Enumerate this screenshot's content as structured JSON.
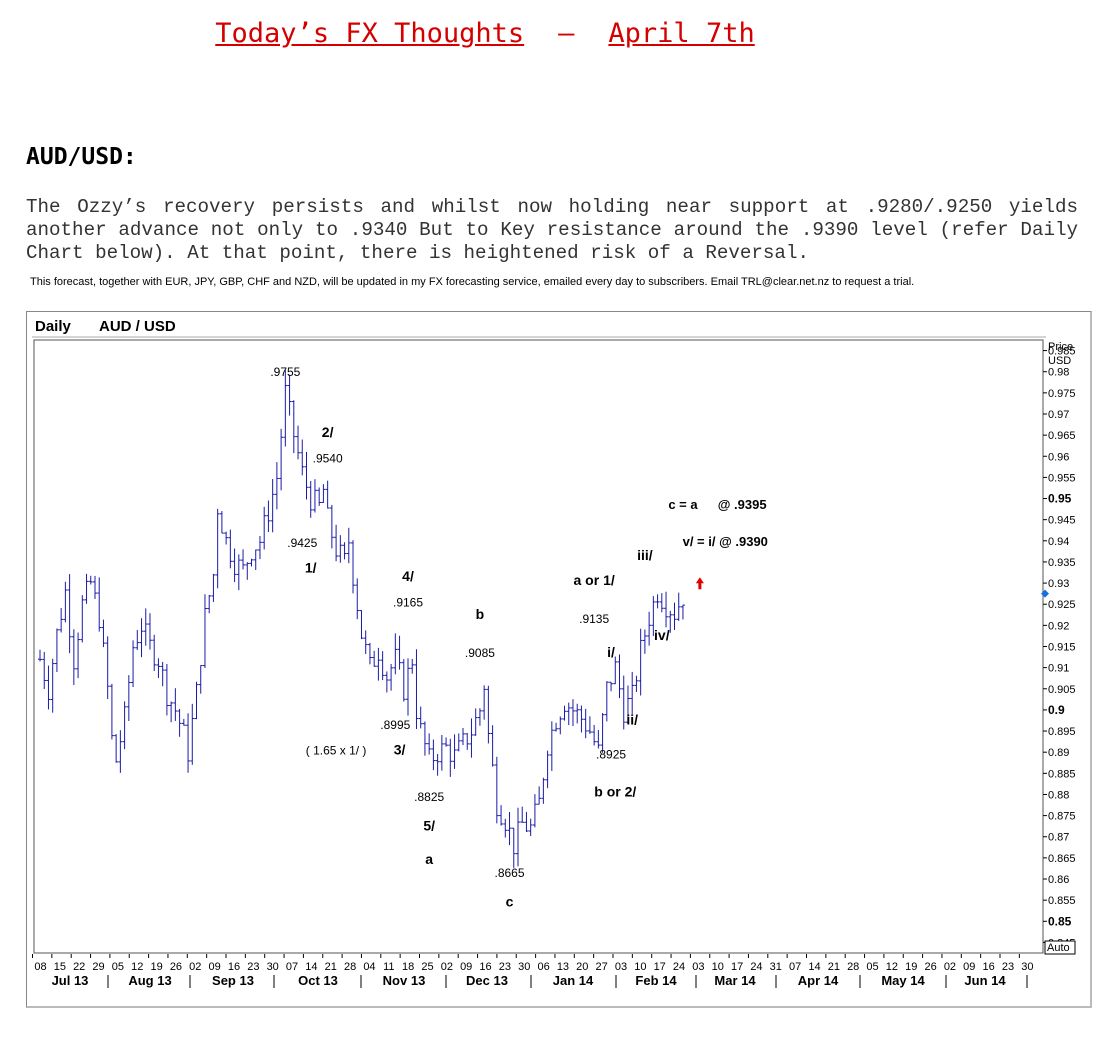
{
  "header": {
    "title_left": "Today’s FX Thoughts",
    "title_sep": "–",
    "title_right": "April 7th"
  },
  "pair_heading": "AUD/USD:",
  "commentary": "The Ozzy’s recovery persists and whilst now holding near support at .9280/.9250 yields another advance not only to .9340 But to Key resistance around the .9390 level (refer Daily Chart below). At that point, there is heightened risk of a Reversal.",
  "service_note": "This forecast, together with EUR, JPY, GBP, CHF and NZD, will be updated in my FX forecasting service, emailed every day to subscribers. Email TRL@clear.net.nz to request a trial.",
  "colors": {
    "title": "#d40000",
    "bars": "#1a1aa8",
    "arrow": "#e00000",
    "marker": "#1a6fe0"
  },
  "chart_data": {
    "type": "ohlc",
    "panel_label": "Daily",
    "instrument": "AUD / USD",
    "ylabel": "Price USD",
    "ylim": [
      0.8425,
      0.9875
    ],
    "auto_label": "Auto",
    "y_ticks": [
      0.985,
      0.98,
      0.975,
      0.97,
      0.965,
      0.96,
      0.955,
      0.95,
      0.945,
      0.94,
      0.935,
      0.93,
      0.925,
      0.92,
      0.915,
      0.91,
      0.905,
      0.9,
      0.895,
      0.89,
      0.885,
      0.88,
      0.875,
      0.87,
      0.865,
      0.86,
      0.855,
      0.85,
      0.845
    ],
    "y_tick_labels": [
      "0.985",
      "0.98",
      "0.975",
      "0.97",
      "0.965",
      "0.96",
      "0.955",
      "0.95",
      "0.945",
      "0.94",
      "0.935",
      "0.93",
      "0.925",
      "0.92",
      "0.915",
      "0.91",
      "0.905",
      "0.9",
      "0.895",
      "0.89",
      "0.885",
      "0.88",
      "0.875",
      "0.87",
      "0.865",
      "0.86",
      "0.855",
      "0.85",
      "0.845"
    ],
    "y_bold_ticks": [
      "0.95",
      "0.9",
      "0.85"
    ],
    "x_day_labels": [
      "08",
      "15",
      "22",
      "29",
      "05",
      "12",
      "19",
      "26",
      "02",
      "09",
      "16",
      "23",
      "30",
      "07",
      "14",
      "21",
      "28",
      "04",
      "11",
      "18",
      "25",
      "02",
      "09",
      "16",
      "23",
      "30",
      "06",
      "13",
      "20",
      "27",
      "03",
      "10",
      "17",
      "24",
      "03",
      "10",
      "17",
      "24",
      "31",
      "07",
      "14",
      "21",
      "28",
      "05",
      "12",
      "19",
      "26",
      "02",
      "09",
      "16",
      "23",
      "30"
    ],
    "x_month_labels": [
      "Jul 13",
      "Aug 13",
      "Sep 13",
      "Oct 13",
      "Nov 13",
      "Dec 13",
      "Jan 14",
      "Feb 14",
      "Mar 14",
      "Apr 14",
      "May 14",
      "Jun 14"
    ],
    "price_path": [
      [
        0,
        0.912
      ],
      [
        2,
        0.905
      ],
      [
        4,
        0.918
      ],
      [
        6,
        0.928
      ],
      [
        8,
        0.912
      ],
      [
        10,
        0.925
      ],
      [
        12,
        0.93
      ],
      [
        14,
        0.922
      ],
      [
        16,
        0.905
      ],
      [
        17,
        0.893
      ],
      [
        18,
        0.888
      ],
      [
        20,
        0.898
      ],
      [
        22,
        0.915
      ],
      [
        24,
        0.92
      ],
      [
        26,
        0.915
      ],
      [
        28,
        0.912
      ],
      [
        30,
        0.904
      ],
      [
        32,
        0.9
      ],
      [
        34,
        0.894
      ],
      [
        35,
        0.89
      ],
      [
        37,
        0.904
      ],
      [
        39,
        0.922
      ],
      [
        41,
        0.932
      ],
      [
        42,
        0.948
      ],
      [
        44,
        0.94
      ],
      [
        46,
        0.935
      ],
      [
        48,
        0.933
      ],
      [
        50,
        0.938
      ],
      [
        52,
        0.94
      ],
      [
        54,
        0.947
      ],
      [
        56,
        0.955
      ],
      [
        57,
        0.965
      ],
      [
        58,
        0.975
      ],
      [
        60,
        0.965
      ],
      [
        62,
        0.956
      ],
      [
        64,
        0.95
      ],
      [
        66,
        0.948
      ],
      [
        67,
        0.952
      ],
      [
        68,
        0.945
      ],
      [
        70,
        0.938
      ],
      [
        72,
        0.935
      ],
      [
        73,
        0.94
      ],
      [
        74,
        0.932
      ],
      [
        76,
        0.918
      ],
      [
        78,
        0.91
      ],
      [
        80,
        0.914
      ],
      [
        82,
        0.908
      ],
      [
        84,
        0.912
      ],
      [
        86,
        0.905
      ],
      [
        88,
        0.912
      ],
      [
        89,
        0.9
      ],
      [
        90,
        0.895
      ],
      [
        92,
        0.888
      ],
      [
        94,
        0.89
      ],
      [
        96,
        0.891
      ],
      [
        98,
        0.889
      ],
      [
        100,
        0.892
      ],
      [
        102,
        0.895
      ],
      [
        104,
        0.9
      ],
      [
        105,
        0.906
      ],
      [
        106,
        0.894
      ],
      [
        108,
        0.878
      ],
      [
        110,
        0.874
      ],
      [
        112,
        0.868
      ],
      [
        114,
        0.873
      ],
      [
        116,
        0.872
      ],
      [
        118,
        0.878
      ],
      [
        120,
        0.892
      ],
      [
        122,
        0.898
      ],
      [
        124,
        0.902
      ],
      [
        126,
        0.9
      ],
      [
        128,
        0.898
      ],
      [
        130,
        0.895
      ],
      [
        132,
        0.89
      ],
      [
        134,
        0.905
      ],
      [
        136,
        0.91
      ],
      [
        138,
        0.9
      ],
      [
        140,
        0.903
      ],
      [
        142,
        0.914
      ],
      [
        144,
        0.922
      ],
      [
        146,
        0.928
      ],
      [
        148,
        0.925
      ],
      [
        150,
        0.923
      ],
      [
        152,
        0.927
      ]
    ],
    "annotations": [
      {
        "text": ".9755",
        "x": 58,
        "y": 0.979
      },
      {
        "text": "2/",
        "x": 68,
        "y": 0.9645
      },
      {
        "text": ".9540",
        "x": 68,
        "y": 0.9585
      },
      {
        "text": ".9425",
        "x": 62,
        "y": 0.9385
      },
      {
        "text": "1/",
        "x": 64,
        "y": 0.9325
      },
      {
        "text": "4/",
        "x": 87,
        "y": 0.9305
      },
      {
        "text": ".9165",
        "x": 87,
        "y": 0.9245
      },
      {
        "text": "b",
        "x": 104,
        "y": 0.9215
      },
      {
        "text": ".9085",
        "x": 104,
        "y": 0.9125
      },
      {
        "text": "a  or  1/",
        "x": 131,
        "y": 0.9295
      },
      {
        "text": ".9135",
        "x": 131,
        "y": 0.9205
      },
      {
        "text": "i/",
        "x": 135,
        "y": 0.9125
      },
      {
        "text": "iii/",
        "x": 143,
        "y": 0.9355
      },
      {
        "text": "iv/",
        "x": 147,
        "y": 0.9165
      },
      {
        "text": "ii/",
        "x": 140,
        "y": 0.8965
      },
      {
        "text": ".8925",
        "x": 135,
        "y": 0.8885
      },
      {
        "text": "b  or  2/",
        "x": 136,
        "y": 0.8795
      },
      {
        "text": ".8995",
        "x": 84,
        "y": 0.8955
      },
      {
        "text": "3/",
        "x": 85,
        "y": 0.8895
      },
      {
        "text": "( 1.65 x  1/ )",
        "x": 70,
        "y": 0.8895
      },
      {
        "text": ".8825",
        "x": 92,
        "y": 0.8785
      },
      {
        "text": "5/",
        "x": 92,
        "y": 0.8715
      },
      {
        "text": "a",
        "x": 92,
        "y": 0.8635
      },
      {
        "text": ".8665",
        "x": 111,
        "y": 0.8605
      },
      {
        "text": "c",
        "x": 111,
        "y": 0.8535
      }
    ],
    "target_labels": [
      {
        "text": "c  =  a",
        "x": 152,
        "y": 0.9475
      },
      {
        "text": "@  .9395",
        "x": 166,
        "y": 0.9475
      },
      {
        "text": "v/   =  i/   @  .9390",
        "x": 162,
        "y": 0.9388
      }
    ],
    "current_price": 0.9275
  }
}
